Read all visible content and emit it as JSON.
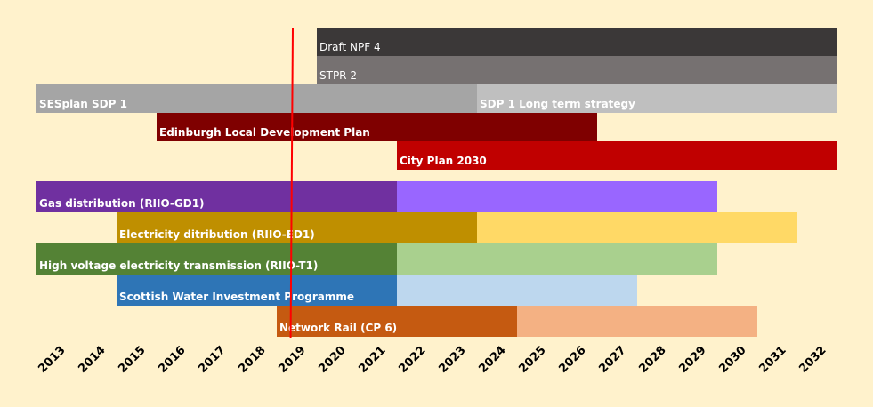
{
  "chart_data": {
    "type": "gantt",
    "title": "",
    "xlabel": "",
    "ylabel": "",
    "x_categories": [
      "2013",
      "2014",
      "2015",
      "2016",
      "2017",
      "2018",
      "2019",
      "2020",
      "2021",
      "2022",
      "2023",
      "2024",
      "2025",
      "2026",
      "2027",
      "2028",
      "2029",
      "2030",
      "2031",
      "2032"
    ],
    "xlim": [
      2013,
      2032
    ],
    "grid": false,
    "legend": "none",
    "current_date_marker": {
      "year": 2019.4,
      "color": "#ff0000"
    },
    "rows": [
      {
        "name": "Draft NPF 4",
        "segments": [
          {
            "label": "Draft NPF 4",
            "start": 2020,
            "end": 2032,
            "color": "#3b3838"
          }
        ]
      },
      {
        "name": "STPR 2",
        "segments": [
          {
            "label": "STPR 2",
            "start": 2020,
            "end": 2032,
            "color": "#767171"
          }
        ]
      },
      {
        "name": "SESplan SDP 1",
        "segments": [
          {
            "label": "SESplan SDP 1",
            "start": 2013,
            "end": 2023,
            "color": "#a5a5a5"
          },
          {
            "label": "SDP 1 Long term strategy",
            "start": 2024,
            "end": 2032,
            "color": "#bfbfbf"
          }
        ]
      },
      {
        "name": "Edinburgh Local Development Plan",
        "segments": [
          {
            "label": "Edinburgh Local Development Plan",
            "start": 2016,
            "end": 2026,
            "color": "#7f0000"
          }
        ]
      },
      {
        "name": "City Plan 2030",
        "segments": [
          {
            "label": "City Plan 2030",
            "start": 2022,
            "end": 2032,
            "color": "#c00000"
          }
        ]
      },
      {
        "name": "Gas distribution (RIIO-GD1)",
        "segments": [
          {
            "label": "Gas distribution (RIIO-GD1)",
            "start": 2013,
            "end": 2021,
            "color": "#7030a0"
          },
          {
            "label": "",
            "start": 2022,
            "end": 2029,
            "color": "#9966ff"
          }
        ]
      },
      {
        "name": "Electricity ditribution (RIIO-ED1)",
        "segments": [
          {
            "label": "Electricity ditribution (RIIO-ED1)",
            "start": 2015,
            "end": 2023,
            "color": "#bf8f00"
          },
          {
            "label": "",
            "start": 2024,
            "end": 2031,
            "color": "#ffd966"
          }
        ]
      },
      {
        "name": "High voltage electricity transmission (RIIO-T1)",
        "segments": [
          {
            "label": "High voltage electricity transmission (RIIO-T1)",
            "start": 2013,
            "end": 2021,
            "color": "#548235"
          },
          {
            "label": "",
            "start": 2022,
            "end": 2029,
            "color": "#a9d08e"
          }
        ]
      },
      {
        "name": "Scottish Water Investment Programme",
        "segments": [
          {
            "label": "Scottish Water Investment Programme",
            "start": 2015,
            "end": 2021,
            "color": "#2e75b6"
          },
          {
            "label": "",
            "start": 2022,
            "end": 2027,
            "color": "#bdd7ee"
          }
        ]
      },
      {
        "name": "Network Rail (CP 6)",
        "segments": [
          {
            "label": "Network Rail (CP 6)",
            "start": 2019,
            "end": 2024,
            "color": "#c55a11"
          },
          {
            "label": "",
            "start": 2025,
            "end": 2030,
            "color": "#f4b183"
          }
        ]
      }
    ]
  }
}
